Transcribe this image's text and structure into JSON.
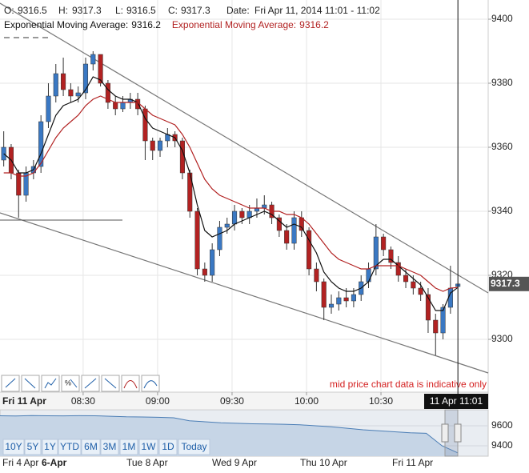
{
  "header": {
    "labels": [
      "O:",
      "H:",
      "L:",
      "C:",
      "Date:"
    ],
    "date": "Fri Apr 11, 2014 11:01 - 11:02"
  },
  "chart_data": {
    "type": "candlestick",
    "x": [
      478,
      481,
      484,
      487,
      490,
      493,
      496,
      499,
      502,
      505,
      508,
      511,
      514,
      517,
      520,
      523,
      526,
      529,
      532,
      535,
      538,
      541,
      544,
      547,
      550,
      553,
      556,
      559,
      562,
      565,
      568,
      571,
      574,
      577,
      580,
      583,
      586,
      589,
      592,
      595,
      598,
      601,
      604,
      607,
      610,
      613,
      616,
      619,
      622,
      625,
      628,
      631,
      634,
      637,
      640,
      643,
      646,
      649,
      652,
      655,
      658,
      661
    ],
    "open": [
      9356,
      9360,
      9352,
      9345,
      9352,
      9354,
      9368,
      9376,
      9383,
      9378,
      9376,
      9377,
      9386,
      9389,
      9380,
      9374,
      9372,
      9374,
      9375,
      9372,
      9362,
      9359,
      9362,
      9364,
      9362,
      9352,
      9340,
      9322,
      9320,
      9328,
      9335,
      9336,
      9340,
      9338,
      9340,
      9341,
      9342,
      9338,
      9334,
      9330,
      9338,
      9334,
      9322,
      9318,
      9310,
      9311,
      9313,
      9312,
      9314,
      9318,
      9322,
      9332,
      9328,
      9324,
      9320,
      9318,
      9316,
      9314,
      9306,
      9302,
      9310,
      9316.5
    ],
    "high": [
      9365,
      9361,
      9353,
      9354,
      9356,
      9370,
      9380,
      9386,
      9388,
      9380,
      9379,
      9388,
      9390,
      9389,
      9381,
      9376,
      9376,
      9377,
      9377,
      9373,
      9363,
      9363,
      9366,
      9365,
      9363,
      9353,
      9341,
      9324,
      9330,
      9337,
      9338,
      9342,
      9341,
      9342,
      9344,
      9345,
      9343,
      9339,
      9336,
      9340,
      9340,
      9335,
      9324,
      9319,
      9314,
      9315,
      9316,
      9316,
      9320,
      9324,
      9336,
      9333,
      9329,
      9326,
      9322,
      9320,
      9318,
      9316,
      9308,
      9311,
      9323,
      9317.3
    ],
    "low": [
      9354,
      9350,
      9338,
      9343,
      9350,
      9352,
      9366,
      9374,
      9376,
      9374,
      9374,
      9375,
      9384,
      9379,
      9372,
      9370,
      9371,
      9372,
      9370,
      9356,
      9356,
      9357,
      9360,
      9360,
      9350,
      9338,
      9320,
      9318,
      9318,
      9326,
      9333,
      9334,
      9336,
      9336,
      9338,
      9339,
      9336,
      9332,
      9328,
      9328,
      9332,
      9320,
      9315,
      9306,
      9308,
      9309,
      9310,
      9310,
      9312,
      9316,
      9320,
      9326,
      9322,
      9318,
      9316,
      9314,
      9312,
      9302,
      9295,
      9300,
      9308,
      9316.5
    ],
    "close": [
      9360,
      9352,
      9345,
      9352,
      9354,
      9368,
      9376,
      9383,
      9378,
      9376,
      9377,
      9386,
      9389,
      9380,
      9374,
      9372,
      9374,
      9375,
      9372,
      9362,
      9359,
      9362,
      9364,
      9362,
      9352,
      9340,
      9322,
      9320,
      9328,
      9335,
      9336,
      9340,
      9338,
      9340,
      9341,
      9342,
      9338,
      9334,
      9330,
      9338,
      9334,
      9322,
      9318,
      9310,
      9311,
      9313,
      9312,
      9314,
      9318,
      9322,
      9332,
      9328,
      9324,
      9320,
      9318,
      9316,
      9314,
      9306,
      9302,
      9310,
      9316,
      9317.3
    ],
    "up_color": "#3a78c3",
    "down_color": "#b22222",
    "series": [
      {
        "name": "Exponential Moving Average:",
        "color": "#111111",
        "values": [
          9358,
          9356,
          9352,
          9352,
          9353,
          9358,
          9364,
          9370,
          9373,
          9374,
          9375,
          9378,
          9382,
          9381,
          9378,
          9376,
          9375,
          9375,
          9374,
          9369,
          9366,
          9365,
          9364,
          9363,
          9359,
          9352,
          9342,
          9334,
          9332,
          9333,
          9334,
          9336,
          9337,
          9338,
          9339,
          9340,
          9339,
          9337,
          9335,
          9336,
          9335,
          9331,
          9327,
          9321,
          9318,
          9316,
          9315,
          9315,
          9316,
          9318,
          9323,
          9325,
          9325,
          9323,
          9321,
          9319,
          9317,
          9313,
          9309,
          9309,
          9314.5,
          9316.2
        ]
      },
      {
        "name": "Exponential Moving Average:",
        "color": "#b22222",
        "values": [
          9352,
          9352,
          9351,
          9351,
          9352,
          9355,
          9359,
          9363,
          9366,
          9368,
          9370,
          9373,
          9375,
          9376,
          9375,
          9374,
          9374,
          9374,
          9374,
          9372,
          9370,
          9369,
          9368,
          9367,
          9364,
          9360,
          9355,
          9350,
          9347,
          9345,
          9344,
          9343,
          9342,
          9341,
          9341,
          9341,
          9340,
          9340,
          9339,
          9339,
          9338,
          9336,
          9333,
          9330,
          9327,
          9325,
          9324,
          9323,
          9322,
          9322,
          9323,
          9323,
          9323,
          9323,
          9322,
          9321,
          9320,
          9318,
          9316,
          9315,
          9316,
          9316.2
        ]
      }
    ],
    "xlim": [
      476.5,
      673.2
    ],
    "xticks": [
      {
        "value": 510,
        "label": "08:30"
      },
      {
        "value": 540,
        "label": "09:00"
      },
      {
        "value": 570,
        "label": "09:30"
      },
      {
        "value": 600,
        "label": "10:00"
      },
      {
        "value": 630,
        "label": "10:30"
      }
    ],
    "ylim": [
      9283.5,
      9406
    ],
    "yticks": [
      9300,
      9320,
      9340,
      9360,
      9380,
      9400
    ],
    "grid": true,
    "date_label": "Fri 11 Apr",
    "crosshair_label": "11 Apr 11:01",
    "note": "mid price chart data is indicative only"
  },
  "navigator": {
    "type": "area",
    "values": [
      9700,
      9698,
      9702,
      9700,
      9699,
      9701,
      9700,
      9695,
      9690,
      9688,
      9685,
      9680,
      9650,
      9640,
      9630,
      9625,
      9620,
      9618,
      9615,
      9610,
      9600,
      9590,
      9575,
      9560,
      9550,
      9540,
      9530,
      9525,
      9400,
      9330
    ],
    "color": "#4a7db5",
    "ylim": [
      9296,
      9760
    ],
    "yticks": [
      9400,
      9600
    ],
    "date_labels": [
      "Fri 4 Apr",
      "6-Apr",
      "Tue 8 Apr",
      "Wed 9 Apr",
      "Thu 10 Apr",
      "Fri 11 Apr"
    ],
    "range_buttons": [
      "10Y",
      "5Y",
      "1Y",
      "YTD",
      "6M",
      "3M",
      "1M",
      "1W",
      "1D",
      "Today"
    ]
  }
}
